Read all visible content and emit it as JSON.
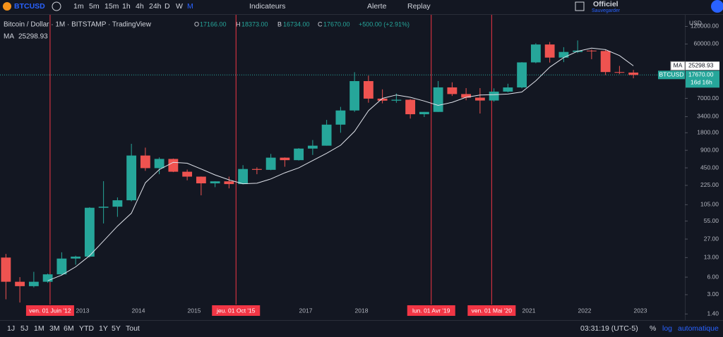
{
  "toolbar": {
    "symbol": "BTCUSD",
    "intervals": [
      "1m",
      "5m",
      "15m",
      "1h",
      "4h",
      "24h",
      "D",
      "W",
      "M"
    ],
    "indicators": "Indicateurs",
    "alert": "Alerte",
    "replay": "Replay",
    "layout": "Officiel",
    "save": "Sauvegarder"
  },
  "legend": {
    "title": "Bitcoin / Dollar · 1M · BITSTAMP · TradingView",
    "o_label": "O",
    "open": "17166.00",
    "h_label": "H",
    "high": "18373.00",
    "b_label": "B",
    "low": "16734.00",
    "c_label": "C",
    "close": "17670.00",
    "change": "+500.00 (+2.91%)"
  },
  "chart_data": {
    "type": "candlestick",
    "currency": "USD",
    "x": [
      "2011-07",
      "2011-10",
      "2012-01",
      "2012-04",
      "2012-07",
      "2012-10",
      "2013-01",
      "2013-04",
      "2013-07",
      "2013-10",
      "2014-01",
      "2014-04",
      "2014-07",
      "2014-10",
      "2015-01",
      "2015-04",
      "2015-07",
      "2015-10",
      "2016-01",
      "2016-04",
      "2016-07",
      "2016-10",
      "2017-01",
      "2017-04",
      "2017-07",
      "2017-10",
      "2018-01",
      "2018-04",
      "2018-07",
      "2018-10",
      "2019-01",
      "2019-04",
      "2019-07",
      "2019-10",
      "2020-01",
      "2020-04",
      "2020-07",
      "2020-10",
      "2021-01",
      "2021-04",
      "2021-07",
      "2021-10",
      "2022-01",
      "2022-04",
      "2022-07",
      "2022-10"
    ],
    "open": [
      13,
      5,
      4.2,
      5,
      6.7,
      12.5,
      13.5,
      93,
      97,
      125,
      732,
      445,
      640,
      386,
      318,
      244,
      264,
      237,
      430,
      416,
      673,
      610,
      963,
      1080,
      2480,
      4340,
      13850,
      6930,
      6390,
      6630,
      3740,
      4100,
      10800,
      8300,
      7200,
      6430,
      9140,
      10780,
      28990,
      58800,
      35040,
      43800,
      46200,
      45500,
      19800,
      19400
    ],
    "high": [
      15,
      6,
      7.4,
      6.9,
      16,
      14,
      95,
      266,
      140,
      1163,
      1000,
      680,
      650,
      420,
      320,
      265,
      318,
      500,
      460,
      780,
      680,
      980,
      1350,
      2990,
      5000,
      19700,
      17200,
      9990,
      8500,
      6800,
      4100,
      13880,
      13200,
      10500,
      10500,
      10400,
      12480,
      29300,
      61780,
      64900,
      52900,
      69000,
      48200,
      47400,
      25200,
      21480
    ],
    "low": [
      2.5,
      2.2,
      4,
      4.8,
      6.5,
      9.8,
      13,
      50,
      65,
      120,
      400,
      350,
      380,
      275,
      152,
      210,
      200,
      235,
      350,
      410,
      470,
      600,
      750,
      1080,
      1800,
      4100,
      5900,
      5750,
      5880,
      3150,
      3350,
      4100,
      7700,
      6500,
      3850,
      6150,
      8900,
      10400,
      28100,
      28800,
      29300,
      41900,
      32900,
      17600,
      18200,
      15480
    ],
    "close": [
      5,
      4.2,
      5,
      6.7,
      12.5,
      13.5,
      93,
      97,
      125,
      732,
      445,
      640,
      386,
      318,
      244,
      264,
      237,
      430,
      416,
      673,
      610,
      963,
      1080,
      2480,
      4340,
      13850,
      6930,
      6390,
      6630,
      3740,
      4100,
      10800,
      8300,
      7200,
      6430,
      9140,
      10780,
      28990,
      58800,
      35040,
      43800,
      46200,
      45500,
      19800,
      19400,
      17670
    ],
    "up_color": "#26a69a",
    "down_color": "#ef5350",
    "ma": {
      "name": "MA",
      "color": "#e0e3eb",
      "values": [
        null,
        null,
        null,
        5.2,
        6.5,
        9,
        14,
        25,
        45,
        75,
        250,
        420,
        560,
        540,
        430,
        340,
        280,
        240,
        245,
        290,
        370,
        450,
        600,
        800,
        1100,
        1900,
        4300,
        7000,
        8000,
        7300,
        6300,
        5300,
        6000,
        7300,
        8000,
        8100,
        8300,
        9000,
        14000,
        24000,
        35000,
        45000,
        51000,
        48000,
        38000,
        25298.93
      ]
    },
    "log_scale": true,
    "ylim": [
      1.1,
      190000
    ],
    "yticks": [
      {
        "value": 120000,
        "label": "120000.00"
      },
      {
        "value": 60000,
        "label": "60000.00"
      },
      {
        "value": 7000,
        "label": "7000.00"
      },
      {
        "value": 3400,
        "label": "3400.00"
      },
      {
        "value": 1800,
        "label": "1800.00"
      },
      {
        "value": 900,
        "label": "900.00"
      },
      {
        "value": 450,
        "label": "450.00"
      },
      {
        "value": 225,
        "label": "225.00"
      },
      {
        "value": 105,
        "label": "105.00"
      },
      {
        "value": 55,
        "label": "55.00"
      },
      {
        "value": 27,
        "label": "27.00"
      },
      {
        "value": 13,
        "label": "13.00"
      },
      {
        "value": 6,
        "label": "6.00"
      },
      {
        "value": 3,
        "label": "3.00"
      },
      {
        "value": 1.4,
        "label": "1.40"
      }
    ],
    "xticks": [
      "2013",
      "2014",
      "2015",
      "2017",
      "2018",
      "2021",
      "2022",
      "2023"
    ],
    "annotations": [
      {
        "x": "2012-06",
        "label": "ven. 01 Juin '12"
      },
      {
        "x": "2015-10",
        "label": "jeu. 01 Oct '15"
      },
      {
        "x": "2019-04",
        "label": "lun. 01 Avr '19"
      },
      {
        "x": "2020-05",
        "label": "ven. 01 Mai '20"
      }
    ],
    "last_price": {
      "name": "BTCUSD",
      "value": 17670,
      "label": "17670.00",
      "countdown": "16d 16h"
    },
    "ma_last": {
      "name": "MA",
      "value": 25298.93
    }
  },
  "bottom_bar": {
    "ranges": [
      "1J",
      "5J",
      "1M",
      "3M",
      "6M",
      "YTD",
      "1Y",
      "5Y",
      "Tout"
    ],
    "clock": "03:31:19 (UTC-5)",
    "percent": "%",
    "log": "log",
    "auto": "automatique"
  }
}
